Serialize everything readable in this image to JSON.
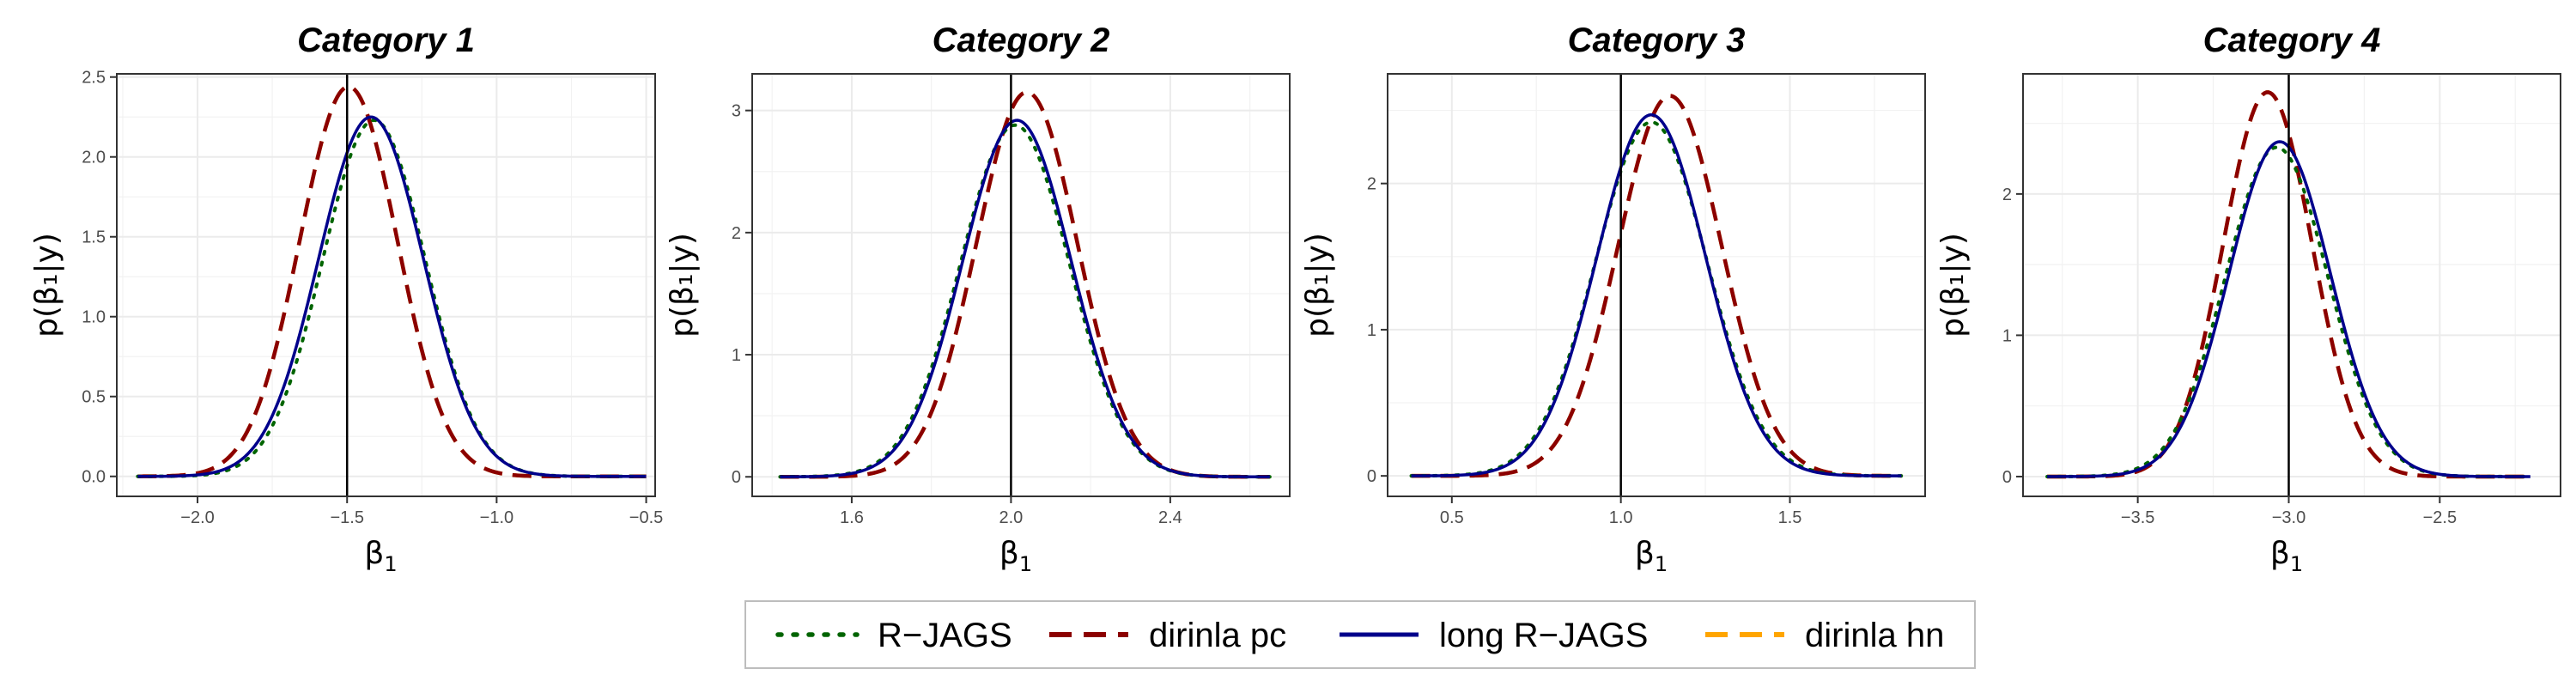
{
  "legend": {
    "entries": [
      {
        "label": "R−JAGS",
        "color": "#006400",
        "dash": "dotted"
      },
      {
        "label": "dirinla pc",
        "color": "#8b0000",
        "dash": "dashed"
      },
      {
        "label": "long R−JAGS",
        "color": "#00008b",
        "dash": "solid"
      },
      {
        "label": "dirinla hn",
        "color": "#ffa500",
        "dash": "dashed"
      }
    ]
  },
  "chart_data": [
    {
      "type": "line",
      "title": "Category 1",
      "xlabel": "β",
      "xlabel_sub": "1",
      "ylabel": "p(β₁|y)",
      "xlim": [
        -2.27,
        -0.47
      ],
      "ylim": [
        -0.125,
        2.52
      ],
      "xticks": [
        {
          "value": -2.0,
          "label": "−2.0"
        },
        {
          "value": -1.5,
          "label": "−1.5"
        },
        {
          "value": -1.0,
          "label": "−1.0"
        },
        {
          "value": -0.5,
          "label": "−0.5"
        }
      ],
      "yticks": [
        {
          "value": 0.0,
          "label": "0.0"
        },
        {
          "value": 0.5,
          "label": "0.5"
        },
        {
          "value": 1.0,
          "label": "1.0"
        },
        {
          "value": 1.5,
          "label": "1.5"
        },
        {
          "value": 2.0,
          "label": "2.0"
        },
        {
          "value": 2.5,
          "label": "2.5"
        }
      ],
      "true_value": -1.5,
      "x_range": [
        -2.2,
        -0.5
      ],
      "grid": true,
      "series": [
        {
          "name": "R−JAGS",
          "mean": -1.41,
          "sd": 0.172,
          "peak": 2.23
        },
        {
          "name": "dirinla pc",
          "mean": -1.495,
          "sd": 0.163,
          "peak": 2.44
        },
        {
          "name": "long R−JAGS",
          "mean": -1.42,
          "sd": 0.175,
          "peak": 2.25
        },
        {
          "name": "dirinla hn",
          "mean": -1.495,
          "sd": 0.163,
          "peak": 2.44
        }
      ]
    },
    {
      "type": "line",
      "title": "Category 2",
      "xlabel": "β",
      "xlabel_sub": "1",
      "ylabel": "p(β₁|y)",
      "xlim": [
        1.35,
        2.7
      ],
      "ylim": [
        -0.16,
        3.3
      ],
      "xticks": [
        {
          "value": 1.6,
          "label": "1.6"
        },
        {
          "value": 2.0,
          "label": "2.0"
        },
        {
          "value": 2.4,
          "label": "2.4"
        }
      ],
      "yticks": [
        {
          "value": 0,
          "label": "0"
        },
        {
          "value": 1,
          "label": "1"
        },
        {
          "value": 2,
          "label": "2"
        },
        {
          "value": 3,
          "label": "3"
        }
      ],
      "true_value": 2.0,
      "x_range": [
        1.42,
        2.65
      ],
      "grid": true,
      "series": [
        {
          "name": "R−JAGS",
          "mean": 2.01,
          "sd": 0.137,
          "peak": 2.88
        },
        {
          "name": "dirinla pc",
          "mean": 2.04,
          "sd": 0.127,
          "peak": 3.15
        },
        {
          "name": "long R−JAGS",
          "mean": 2.015,
          "sd": 0.136,
          "peak": 2.92
        },
        {
          "name": "dirinla hn",
          "mean": 2.04,
          "sd": 0.127,
          "peak": 3.15
        }
      ]
    },
    {
      "type": "line",
      "title": "Category 3",
      "xlabel": "β",
      "xlabel_sub": "1",
      "ylabel": "p(β₁|y)",
      "xlim": [
        0.31,
        1.9
      ],
      "ylim": [
        -0.14,
        2.75
      ],
      "xticks": [
        {
          "value": 0.5,
          "label": "0.5"
        },
        {
          "value": 1.0,
          "label": "1.0"
        },
        {
          "value": 1.5,
          "label": "1.5"
        }
      ],
      "yticks": [
        {
          "value": 0,
          "label": "0"
        },
        {
          "value": 1,
          "label": "1"
        },
        {
          "value": 2,
          "label": "2"
        }
      ],
      "true_value": 1.0,
      "x_range": [
        0.38,
        1.83
      ],
      "grid": true,
      "series": [
        {
          "name": "R−JAGS",
          "mean": 1.09,
          "sd": 0.165,
          "peak": 2.42
        },
        {
          "name": "dirinla pc",
          "mean": 1.145,
          "sd": 0.153,
          "peak": 2.6
        },
        {
          "name": "long R−JAGS",
          "mean": 1.09,
          "sd": 0.161,
          "peak": 2.47
        },
        {
          "name": "dirinla hn",
          "mean": 1.145,
          "sd": 0.153,
          "peak": 2.6
        }
      ]
    },
    {
      "type": "line",
      "title": "Category 4",
      "xlabel": "β",
      "xlabel_sub": "1",
      "ylabel": "p(β₁|y)",
      "xlim": [
        -3.88,
        -2.1
      ],
      "ylim": [
        -0.14,
        2.85
      ],
      "xticks": [
        {
          "value": -3.5,
          "label": "−3.5"
        },
        {
          "value": -3.0,
          "label": "−3.0"
        },
        {
          "value": -2.5,
          "label": "−2.5"
        }
      ],
      "yticks": [
        {
          "value": 0,
          "label": "0"
        },
        {
          "value": 1,
          "label": "1"
        },
        {
          "value": 2,
          "label": "2"
        }
      ],
      "true_value": -3.0,
      "x_range": [
        -3.8,
        -2.2
      ],
      "grid": true,
      "series": [
        {
          "name": "R−JAGS",
          "mean": -3.04,
          "sd": 0.17,
          "peak": 2.33
        },
        {
          "name": "dirinla pc",
          "mean": -3.07,
          "sd": 0.147,
          "peak": 2.72
        },
        {
          "name": "long R−JAGS",
          "mean": -3.03,
          "sd": 0.168,
          "peak": 2.37
        },
        {
          "name": "dirinla hn",
          "mean": -3.07,
          "sd": 0.147,
          "peak": 2.72
        }
      ]
    }
  ]
}
